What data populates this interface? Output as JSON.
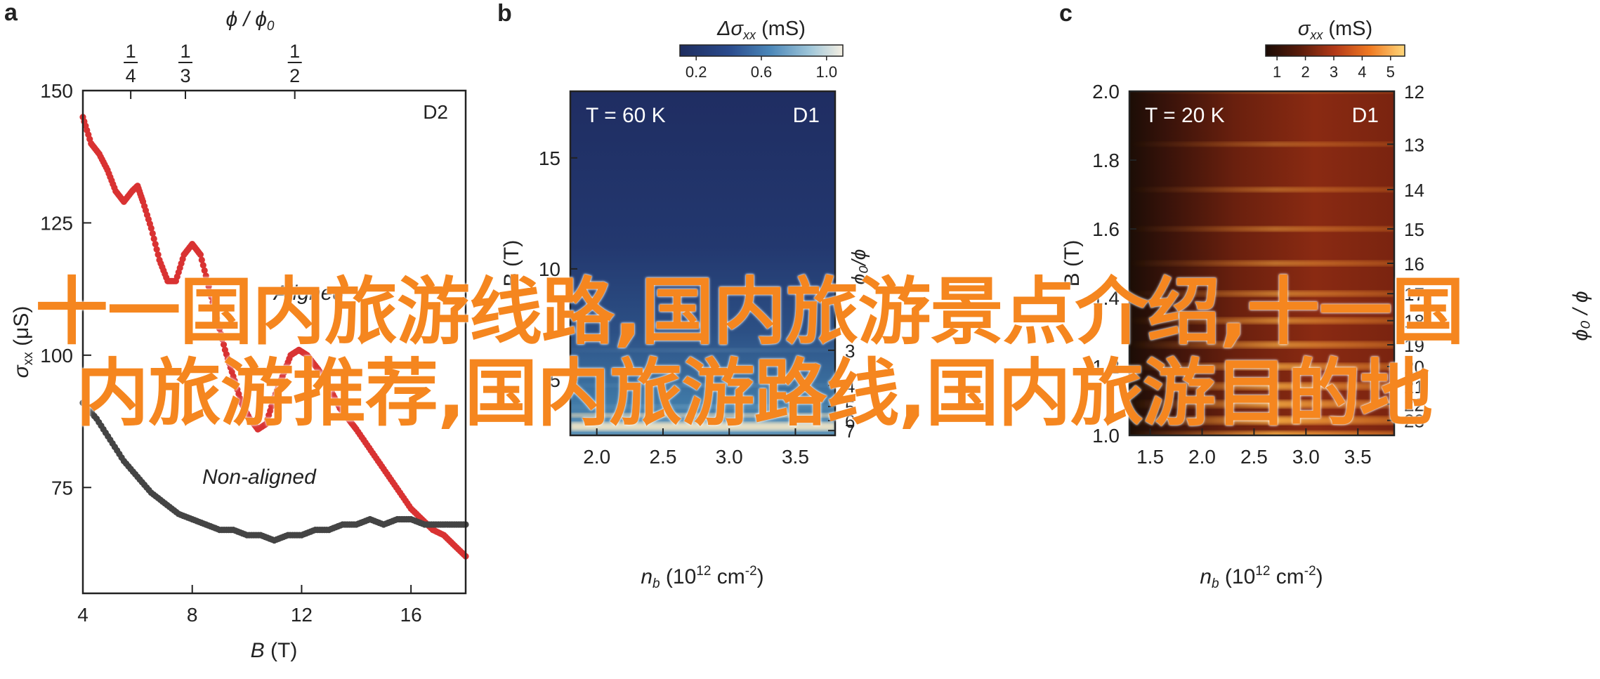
{
  "panels": [
    {
      "letter": "a",
      "device": "D2",
      "xlabel_italic": "B",
      "xlabel_rest": " (T)",
      "ylabel_symbol": "σ",
      "ylabel_sub": "xx",
      "ylabel_unit": " (μS)",
      "top_axis_label": "ϕ / ϕ",
      "top_axis_sub": "0",
      "top_ticks": [
        {
          "num": "1",
          "den": "4",
          "value": 5.75
        },
        {
          "num": "1",
          "den": "3",
          "value": 7.75
        },
        {
          "num": "1",
          "den": "2",
          "value": 11.75
        }
      ]
    },
    {
      "letter": "b",
      "device": "D1",
      "temperature": "T = 60 K",
      "colorbar_label_prefix": "Δσ",
      "colorbar_label_sub": "xx",
      "colorbar_label_unit": " (mS)",
      "colorbar_ticks": [
        "0.2",
        "0.6",
        "1.0"
      ],
      "xlabel": "n",
      "xlabel_sub": "b",
      "xlabel_unit": " (10",
      "xlabel_exp": "12",
      "xlabel_unit2": " cm",
      "xlabel_exp2": "-2",
      "xlabel_close": ")",
      "ylabel": "B (T)",
      "right_label": "ϕ₀/ϕ",
      "right_ticks": [
        "3",
        "4",
        "5",
        "6",
        "7"
      ]
    },
    {
      "letter": "c",
      "device": "D1",
      "temperature": "T = 20 K",
      "colorbar_label_prefix": "σ",
      "colorbar_label_sub": "xx",
      "colorbar_label_unit": " (mS)",
      "colorbar_ticks": [
        "1",
        "2",
        "3",
        "4",
        "5"
      ],
      "xlabel": "n",
      "xlabel_sub": "b",
      "xlabel_unit": " (10",
      "xlabel_exp": "12",
      "xlabel_unit2": " cm",
      "xlabel_exp2": "-2",
      "xlabel_close": ")",
      "ylabel": "B (T)",
      "right_label": "ϕ₀ / ϕ",
      "right_ticks": [
        "12",
        "13",
        "14",
        "15",
        "16",
        "17",
        "18",
        "19",
        "20",
        "21",
        "22",
        "23"
      ]
    }
  ],
  "watermark": {
    "line1": "十一国内旅游线路,国内旅游景点介绍,十一国",
    "line2": "内旅游推荐,国内旅游路线,国内旅游目的地",
    "color": "#f5861f"
  },
  "colors": {
    "aligned": "#d93232",
    "non_aligned": "#444444",
    "colormap_b": [
      "#1d2c5e",
      "#2a4a8c",
      "#4a86b8",
      "#9fc6d9",
      "#f5efe2"
    ],
    "colormap_c": [
      "#1a0b05",
      "#5a1c0b",
      "#b43a18",
      "#f07a22",
      "#ffd77a"
    ]
  },
  "chart_data": [
    {
      "type": "scatter",
      "panel": "a",
      "xlabel": "B (T)",
      "ylabel": "σxx (μS)",
      "xlim": [
        4,
        18
      ],
      "ylim": [
        55,
        150
      ],
      "xticks": [
        4,
        8,
        12,
        16
      ],
      "yticks": [
        75,
        100,
        125,
        150
      ],
      "legend": "inline labels",
      "series": [
        {
          "name": "Aligned",
          "color": "#d93232",
          "x": [
            4.0,
            4.3,
            4.6,
            4.9,
            5.2,
            5.5,
            5.8,
            6.0,
            6.2,
            6.5,
            6.8,
            7.1,
            7.4,
            7.7,
            8.0,
            8.3,
            8.6,
            8.9,
            9.2,
            9.5,
            9.8,
            10.1,
            10.4,
            10.7,
            11.0,
            11.3,
            11.6,
            11.9,
            12.2,
            12.5,
            12.8,
            13.1,
            13.4,
            13.7,
            14.0,
            14.4,
            14.8,
            15.2,
            15.6,
            16.0,
            16.4,
            16.8,
            17.2,
            17.6,
            18.0
          ],
          "y": [
            145,
            140,
            138,
            135,
            131,
            129,
            131,
            132,
            129,
            124,
            118,
            114,
            114,
            119,
            121,
            119,
            113,
            107,
            101,
            96,
            91,
            88,
            86,
            87,
            92,
            96,
            100,
            101,
            100,
            98,
            96,
            93,
            90,
            88,
            86,
            83,
            80,
            77,
            74,
            71,
            69,
            67,
            66,
            64,
            62
          ]
        },
        {
          "name": "Non-aligned",
          "color": "#444444",
          "x": [
            4.0,
            4.5,
            5.0,
            5.5,
            6.0,
            6.5,
            7.0,
            7.5,
            8.0,
            8.5,
            9.0,
            9.5,
            10.0,
            10.5,
            11.0,
            11.5,
            12.0,
            12.5,
            13.0,
            13.5,
            14.0,
            14.5,
            15.0,
            15.5,
            16.0,
            16.5,
            17.0,
            17.5,
            18.0
          ],
          "y": [
            91,
            88,
            84,
            80,
            77,
            74,
            72,
            70,
            69,
            68,
            67,
            67,
            66,
            66,
            65,
            66,
            66,
            67,
            67,
            68,
            68,
            69,
            68,
            69,
            69,
            68,
            68,
            68,
            68
          ]
        }
      ]
    },
    {
      "type": "heatmap",
      "panel": "b",
      "xlabel": "nb (10^12 cm^-2)",
      "ylabel": "B (T)",
      "xlim": [
        1.8,
        3.8
      ],
      "ylim": [
        2.5,
        18
      ],
      "xticks": [
        2.0,
        2.5,
        3.0,
        3.5
      ],
      "yticks": [
        5,
        10,
        15
      ],
      "colorbar": {
        "label": "Δσxx (mS)",
        "range": [
          0.1,
          1.1
        ],
        "ticks": [
          0.2,
          0.6,
          1.0
        ]
      },
      "right_axis": {
        "label": "ϕ0/ϕ",
        "ticks": [
          3,
          4,
          5,
          6,
          7
        ]
      }
    },
    {
      "type": "heatmap",
      "panel": "c",
      "xlabel": "nb (10^12 cm^-2)",
      "ylabel": "B (T)",
      "xlim": [
        1.3,
        3.85
      ],
      "ylim": [
        1.0,
        2.0
      ],
      "xticks": [
        1.5,
        2.0,
        2.5,
        3.0,
        3.5
      ],
      "yticks": [
        1.0,
        1.2,
        1.4,
        1.6,
        1.8,
        2.0
      ],
      "colorbar": {
        "label": "σxx (mS)",
        "range": [
          0.6,
          5.5
        ],
        "ticks": [
          1,
          2,
          3,
          4,
          5
        ]
      },
      "right_axis": {
        "label": "ϕ0/ϕ",
        "ticks": [
          12,
          13,
          14,
          15,
          16,
          17,
          18,
          19,
          20,
          21,
          22,
          23
        ]
      }
    }
  ]
}
